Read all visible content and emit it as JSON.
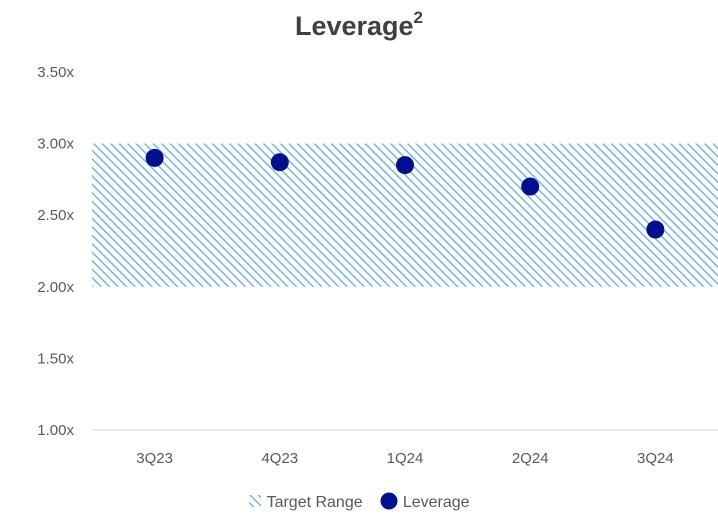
{
  "chart_data": {
    "type": "scatter",
    "title": "Leverage",
    "title_superscript": "2",
    "categories": [
      "3Q23",
      "4Q23",
      "1Q24",
      "2Q24",
      "3Q24"
    ],
    "series": [
      {
        "name": "Leverage",
        "values": [
          2.9,
          2.87,
          2.85,
          2.7,
          2.4
        ],
        "color": "#000f8f"
      }
    ],
    "target_range": {
      "name": "Target Range",
      "low": 2.0,
      "high": 3.0,
      "color": "#74b6e0"
    },
    "ylim": [
      1.0,
      3.5
    ],
    "yticks": [
      "3.50x",
      "3.00x",
      "2.50x",
      "2.00x",
      "1.50x",
      "1.00x"
    ],
    "ytick_values": [
      3.5,
      3.0,
      2.5,
      2.0,
      1.5,
      1.0
    ],
    "grid": false,
    "legend": "bottom"
  }
}
